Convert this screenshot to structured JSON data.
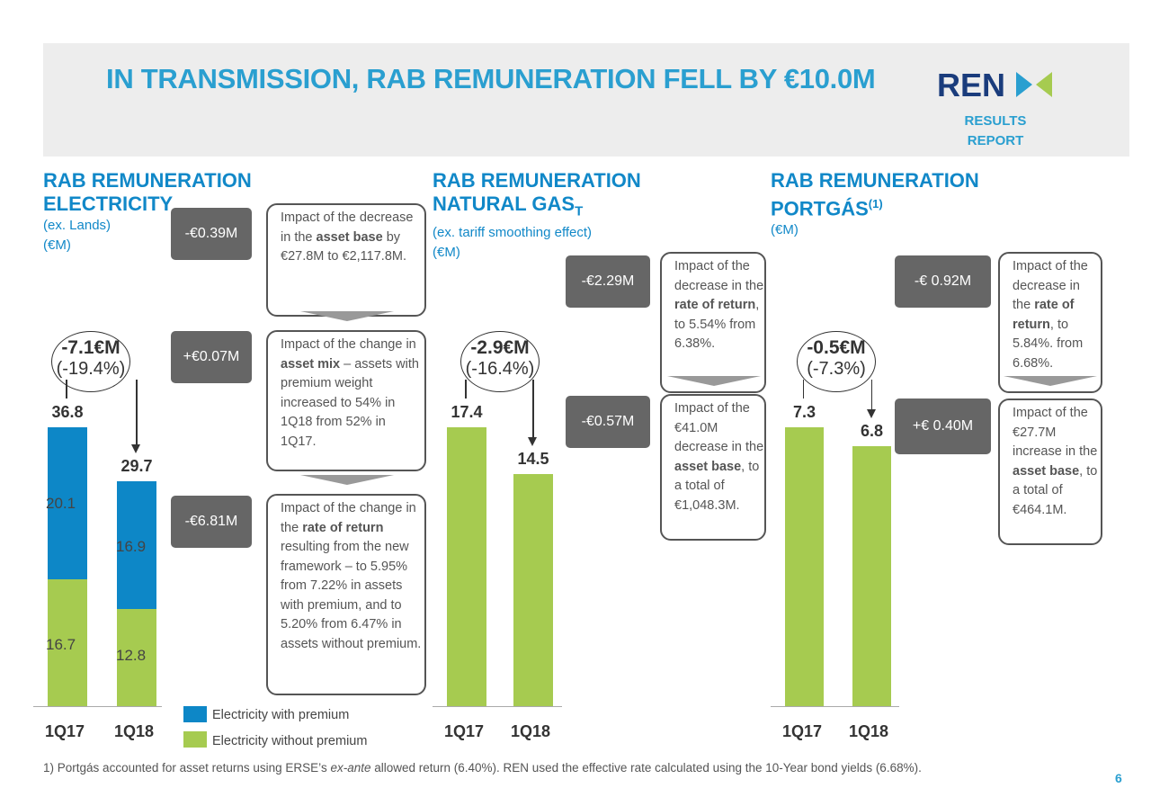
{
  "header": {
    "title": "IN TRANSMISSION, RAB REMUNERATION FELL BY €10.0M",
    "logo_text": "REN",
    "results": "RESULTS",
    "report": "REPORT"
  },
  "colors": {
    "accent": "#2a9fd0",
    "premium": "#0d87c7",
    "without_premium": "#a6cb50",
    "impact_box": "#666666"
  },
  "sections": [
    {
      "title1": "RAB REMUNERATION",
      "title2": "ELECTRICITY",
      "title_sup": "",
      "sub1": "(ex. Lands)",
      "sub2": "(€M)"
    },
    {
      "title1": "RAB REMUNERATION",
      "title2": "NATURAL GAS",
      "title_sub": "T",
      "sub1": "(ex. tariff smoothing effect)",
      "sub2": "(€M)"
    },
    {
      "title1": "RAB REMUNERATION",
      "title2": "PORTGÁS",
      "title_sup": "(1)",
      "sub1": "(€M)",
      "sub2": ""
    }
  ],
  "chart_data": [
    {
      "type": "bar",
      "stacked": true,
      "categories": [
        "1Q17",
        "1Q18"
      ],
      "totals": [
        36.8,
        29.7
      ],
      "series": [
        {
          "name": "Electricity without premium",
          "values": [
            16.7,
            12.8
          ]
        },
        {
          "name": "Electricity with premium",
          "values": [
            20.1,
            16.9
          ]
        }
      ],
      "change": {
        "abs": "-7.1€M",
        "pct": "(-19.4%)"
      }
    },
    {
      "type": "bar",
      "categories": [
        "1Q17",
        "1Q18"
      ],
      "values": [
        17.4,
        14.5
      ],
      "change": {
        "abs": "-2.9€M",
        "pct": "(-16.4%)"
      }
    },
    {
      "type": "bar",
      "categories": [
        "1Q17",
        "1Q18"
      ],
      "values": [
        7.3,
        6.8
      ],
      "change": {
        "abs": "-0.5€M",
        "pct": "(-7.3%)"
      }
    }
  ],
  "legend": [
    "Electricity with premium",
    "Electricity without premium"
  ],
  "impacts": [
    {
      "value": "-€0.39M",
      "text": [
        [
          "Impact of the decrease in the ",
          0
        ],
        [
          "asset base",
          1
        ],
        [
          " by €27.8M to €2,117.8M.",
          0
        ]
      ]
    },
    {
      "value": "+€0.07M",
      "text": [
        [
          "Impact of the change in ",
          0
        ],
        [
          "asset mix",
          1
        ],
        [
          " – assets with premium weight increased to 54% in 1Q18 from 52% in 1Q17.",
          0
        ]
      ]
    },
    {
      "value": "-€6.81M",
      "text": [
        [
          "Impact of the change in the ",
          0
        ],
        [
          "rate of return",
          1
        ],
        [
          " resulting from the new framework – to 5.95% from 7.22% in assets with premium, and to 5.20% from 6.47% in assets without premium.",
          0
        ]
      ]
    },
    {
      "value": "-€2.29M",
      "text": [
        [
          "Impact of the decrease in the ",
          0
        ],
        [
          "rate of return",
          1
        ],
        [
          ", to 5.54% from 6.38%.",
          0
        ]
      ]
    },
    {
      "value": "-€0.57M",
      "text": [
        [
          "Impact of the €41.0M decrease in the ",
          0
        ],
        [
          "asset base",
          1
        ],
        [
          ", to a total of €1,048.3M.",
          0
        ]
      ]
    },
    {
      "value": "-€ 0.92M",
      "text": [
        [
          "Impact of the decrease in the ",
          0
        ],
        [
          "rate of return",
          1
        ],
        [
          ", to 5.84%. from 6.68%.",
          0
        ]
      ]
    },
    {
      "value": "+€ 0.40M",
      "text": [
        [
          "Impact of the €27.7M increase in the ",
          0
        ],
        [
          "asset base",
          1
        ],
        [
          ", to a total of €464.1M.",
          0
        ]
      ]
    }
  ],
  "footnote": {
    "num": "1)",
    "pre": "Portgás accounted for asset returns using ERSE’s ",
    "em": "ex-ante",
    "post": " allowed return (6.40%). REN used the effective rate calculated using the 10-Year bond yields (6.68%)."
  },
  "page_number": "6"
}
